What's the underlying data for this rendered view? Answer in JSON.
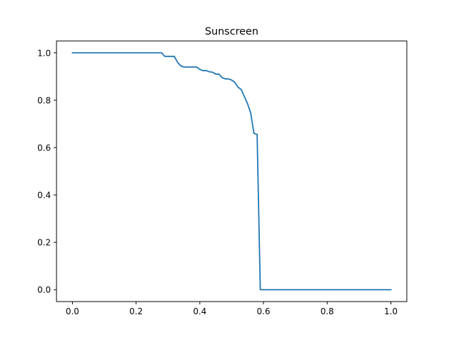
{
  "chart_data": {
    "type": "line",
    "title": "Sunscreen",
    "xlabel": "",
    "ylabel": "",
    "xlim": [
      -0.05,
      1.05
    ],
    "ylim": [
      -0.05,
      1.05
    ],
    "grid": false,
    "xticks": [
      0.0,
      0.2,
      0.4,
      0.6,
      0.8,
      1.0
    ],
    "xtick_labels": [
      "0.0",
      "0.2",
      "0.4",
      "0.6",
      "0.8",
      "1.0"
    ],
    "yticks": [
      0.0,
      0.2,
      0.4,
      0.6,
      0.8,
      1.0
    ],
    "ytick_labels": [
      "0.0",
      "0.2",
      "0.4",
      "0.6",
      "0.8",
      "1.0"
    ],
    "colors": {
      "line": "#1f77b4",
      "axes": "#000000"
    },
    "series": [
      {
        "x": [
          0.0,
          0.28,
          0.29,
          0.32,
          0.33,
          0.34,
          0.35,
          0.38,
          0.39,
          0.4,
          0.41,
          0.42,
          0.43,
          0.44,
          0.45,
          0.46,
          0.47,
          0.48,
          0.49,
          0.5,
          0.51,
          0.52,
          0.53,
          0.54,
          0.55,
          0.56,
          0.57,
          0.58,
          0.59,
          0.6,
          1.0
        ],
        "y": [
          1.0,
          1.0,
          0.985,
          0.985,
          0.96,
          0.945,
          0.94,
          0.94,
          0.94,
          0.93,
          0.925,
          0.925,
          0.92,
          0.918,
          0.91,
          0.91,
          0.895,
          0.89,
          0.89,
          0.885,
          0.875,
          0.855,
          0.845,
          0.815,
          0.785,
          0.745,
          0.66,
          0.655,
          0.0,
          0.0,
          0.0
        ]
      }
    ]
  }
}
